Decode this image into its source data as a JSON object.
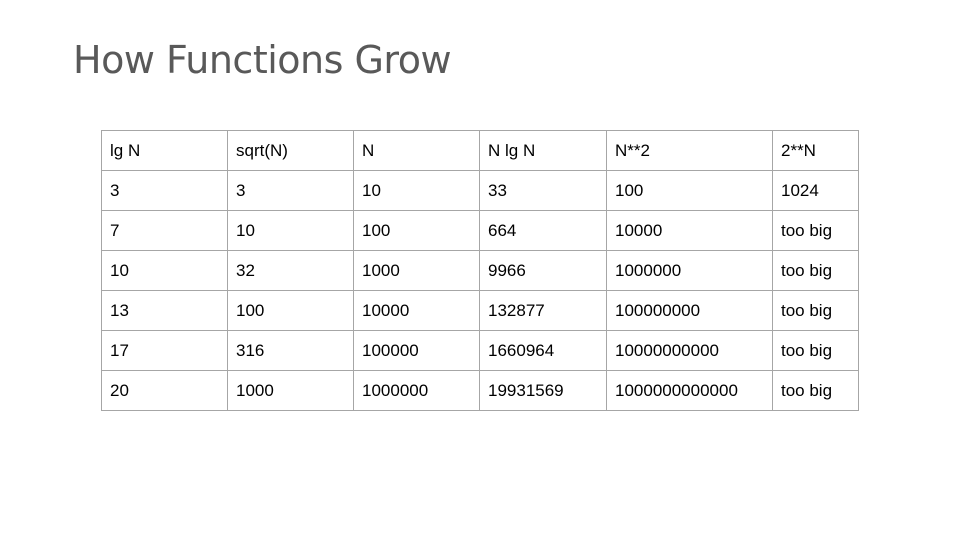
{
  "slide": {
    "title": "How Functions Grow"
  },
  "table": {
    "headers": [
      "lg N",
      "sqrt(N)",
      "N",
      "N lg N",
      "N**2",
      "2**N"
    ],
    "rows": [
      [
        "3",
        "3",
        "10",
        "33",
        "100",
        "1024"
      ],
      [
        "7",
        "10",
        "100",
        "664",
        "10000",
        "too big"
      ],
      [
        "10",
        "32",
        "1000",
        "9966",
        "1000000",
        "too big"
      ],
      [
        "13",
        "100",
        "10000",
        "132877",
        "100000000",
        "too big"
      ],
      [
        "17",
        "316",
        "100000",
        "1660964",
        "10000000000",
        "too big"
      ],
      [
        "20",
        "1000",
        "1000000",
        "19931569",
        "1000000000000",
        "too big"
      ]
    ]
  },
  "colors": {
    "title": "#595959",
    "border": "#a6a6a6",
    "text": "#000000",
    "background": "#ffffff"
  }
}
